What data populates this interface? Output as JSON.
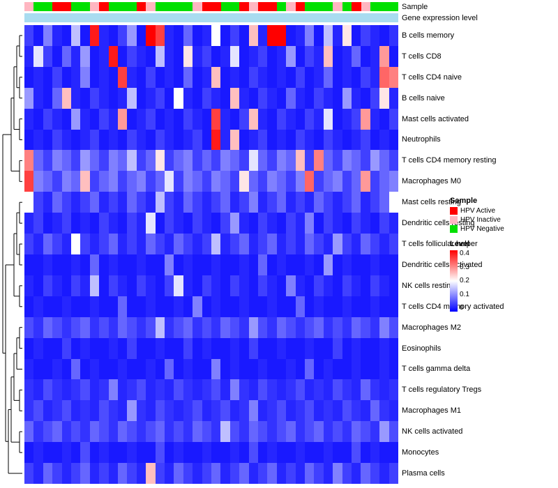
{
  "title_labels": {
    "sample": "Sample",
    "gene_expression": "Gene expression level"
  },
  "legend": {
    "sample_title": "Sample",
    "sample_items": [
      {
        "label": "HPV Active",
        "color": "#FF0000"
      },
      {
        "label": "HPV Inactive",
        "color": "#FFB6C1"
      },
      {
        "label": "HPV Negative",
        "color": "#00E000"
      }
    ],
    "level_title": "Level",
    "level_ticks": [
      "0.4",
      "0.3",
      "0.2",
      "0.1",
      "0"
    ]
  },
  "annotation": {
    "gene_expression_color": "#A9DCF0"
  },
  "chart_data": {
    "type": "heatmap",
    "title": "",
    "rows": [
      "B cells memory",
      "T cells CD8",
      "T cells CD4 naive",
      "B cells naive",
      "Mast cells activated",
      "Neutrophils",
      "T cells CD4 memory resting",
      "Macrophages M0",
      "Mast cells resting",
      "Dendritic cells resting",
      "T cells follicular helper",
      "Dendritic cells activated",
      "NK cells resting",
      "T cells CD4 memory activated",
      "Macrophages M2",
      "Eosinophils",
      "T cells gamma delta",
      "T cells regulatory  Tregs",
      "Macrophages M1",
      "NK cells activated",
      "Monocytes",
      "Plasma cells"
    ],
    "columns": 40,
    "value_range": [
      0,
      0.4
    ],
    "colormap": [
      "#0000FF",
      "#FFFFFF",
      "#FF0000"
    ],
    "column_annotation": [
      "HPV Inactive",
      "HPV Negative",
      "HPV Negative",
      "HPV Active",
      "HPV Active",
      "HPV Negative",
      "HPV Negative",
      "HPV Inactive",
      "HPV Active",
      "HPV Negative",
      "HPV Negative",
      "HPV Negative",
      "HPV Active",
      "HPV Inactive",
      "HPV Negative",
      "HPV Negative",
      "HPV Negative",
      "HPV Negative",
      "HPV Inactive",
      "HPV Active",
      "HPV Active",
      "HPV Negative",
      "HPV Negative",
      "HPV Active",
      "HPV Inactive",
      "HPV Active",
      "HPV Active",
      "HPV Negative",
      "HPV Inactive",
      "HPV Active",
      "HPV Negative",
      "HPV Negative",
      "HPV Negative",
      "HPV Inactive",
      "HPV Negative",
      "HPV Active",
      "HPV Inactive",
      "HPV Negative",
      "HPV Negative",
      "HPV Negative"
    ],
    "row_dendrogram": [
      [
        [
          [
            [
              0,
              1
            ],
            [
              2,
              3
            ]
          ],
          [
            4,
            5
          ]
        ],
        [
          6,
          7
        ]
      ],
      [
        [
          [
            [
              8,
              9
            ],
            [
              10,
              11
            ]
          ],
          [
            12,
            13
          ]
        ],
        [
          [
            [
              [
                [
                  14,
                  15
                ],
                16
              ],
              [
                17,
                18
              ]
            ],
            [
              19,
              20
            ]
          ],
          21
        ]
      ]
    ],
    "values": [
      [
        0.05,
        0.02,
        0.1,
        0.03,
        0.02,
        0.15,
        0.02,
        0.38,
        0.03,
        0.02,
        0.05,
        0.12,
        0.02,
        0.4,
        0.35,
        0.03,
        0.02,
        0.08,
        0.02,
        0.03,
        0.2,
        0.02,
        0.05,
        0.02,
        0.25,
        0.03,
        0.4,
        0.4,
        0.02,
        0.03,
        0.1,
        0.02,
        0.15,
        0.03,
        0.22,
        0.02,
        0.05,
        0.03,
        0.02,
        0.04
      ],
      [
        0.03,
        0.18,
        0.05,
        0.02,
        0.08,
        0.03,
        0.12,
        0.02,
        0.03,
        0.38,
        0.02,
        0.05,
        0.03,
        0.02,
        0.15,
        0.03,
        0.02,
        0.22,
        0.03,
        0.05,
        0.02,
        0.03,
        0.18,
        0.02,
        0.03,
        0.05,
        0.02,
        0.03,
        0.12,
        0.02,
        0.05,
        0.03,
        0.25,
        0.02,
        0.03,
        0.08,
        0.02,
        0.03,
        0.28,
        0.02
      ],
      [
        0.02,
        0.03,
        0.02,
        0.05,
        0.02,
        0.03,
        0.1,
        0.02,
        0.03,
        0.02,
        0.35,
        0.03,
        0.02,
        0.05,
        0.02,
        0.03,
        0.02,
        0.08,
        0.02,
        0.03,
        0.25,
        0.02,
        0.03,
        0.02,
        0.05,
        0.03,
        0.02,
        0.03,
        0.02,
        0.05,
        0.02,
        0.03,
        0.08,
        0.02,
        0.03,
        0.02,
        0.05,
        0.03,
        0.32,
        0.3
      ],
      [
        0.12,
        0.03,
        0.02,
        0.08,
        0.25,
        0.03,
        0.02,
        0.05,
        0.03,
        0.02,
        0.03,
        0.15,
        0.02,
        0.03,
        0.05,
        0.02,
        0.2,
        0.03,
        0.02,
        0.05,
        0.03,
        0.02,
        0.25,
        0.03,
        0.02,
        0.05,
        0.03,
        0.02,
        0.08,
        0.03,
        0.02,
        0.05,
        0.03,
        0.02,
        0.12,
        0.03,
        0.02,
        0.05,
        0.22,
        0.03
      ],
      [
        0.03,
        0.02,
        0.05,
        0.03,
        0.02,
        0.12,
        0.03,
        0.02,
        0.05,
        0.03,
        0.28,
        0.02,
        0.03,
        0.05,
        0.02,
        0.03,
        0.02,
        0.05,
        0.03,
        0.02,
        0.35,
        0.03,
        0.02,
        0.05,
        0.25,
        0.03,
        0.02,
        0.05,
        0.03,
        0.02,
        0.05,
        0.03,
        0.18,
        0.02,
        0.03,
        0.05,
        0.28,
        0.03,
        0.02,
        0.05
      ],
      [
        0.02,
        0.03,
        0.02,
        0.05,
        0.03,
        0.02,
        0.03,
        0.05,
        0.02,
        0.03,
        0.02,
        0.05,
        0.03,
        0.02,
        0.05,
        0.03,
        0.02,
        0.03,
        0.05,
        0.02,
        0.38,
        0.03,
        0.25,
        0.02,
        0.03,
        0.05,
        0.02,
        0.03,
        0.02,
        0.05,
        0.03,
        0.02,
        0.05,
        0.03,
        0.02,
        0.03,
        0.05,
        0.02,
        0.03,
        0.02
      ],
      [
        0.3,
        0.08,
        0.05,
        0.1,
        0.08,
        0.05,
        0.12,
        0.08,
        0.05,
        0.1,
        0.08,
        0.15,
        0.05,
        0.08,
        0.22,
        0.05,
        0.08,
        0.1,
        0.05,
        0.08,
        0.05,
        0.1,
        0.08,
        0.05,
        0.18,
        0.08,
        0.05,
        0.1,
        0.08,
        0.25,
        0.05,
        0.3,
        0.08,
        0.05,
        0.1,
        0.08,
        0.05,
        0.12,
        0.08,
        0.05
      ],
      [
        0.35,
        0.1,
        0.08,
        0.05,
        0.1,
        0.08,
        0.25,
        0.05,
        0.08,
        0.1,
        0.05,
        0.08,
        0.1,
        0.05,
        0.08,
        0.18,
        0.05,
        0.1,
        0.08,
        0.05,
        0.1,
        0.08,
        0.05,
        0.22,
        0.08,
        0.05,
        0.1,
        0.08,
        0.05,
        0.1,
        0.32,
        0.05,
        0.08,
        0.1,
        0.05,
        0.08,
        0.28,
        0.05,
        0.08,
        0.1
      ],
      [
        0.2,
        0.05,
        0.03,
        0.08,
        0.05,
        0.03,
        0.05,
        0.08,
        0.03,
        0.05,
        0.03,
        0.08,
        0.05,
        0.03,
        0.15,
        0.05,
        0.03,
        0.08,
        0.05,
        0.03,
        0.05,
        0.08,
        0.03,
        0.05,
        0.1,
        0.03,
        0.05,
        0.08,
        0.03,
        0.05,
        0.03,
        0.08,
        0.05,
        0.03,
        0.05,
        0.08,
        0.03,
        0.05,
        0.08,
        0.2
      ],
      [
        0.03,
        0.05,
        0.02,
        0.03,
        0.05,
        0.02,
        0.03,
        0.02,
        0.05,
        0.03,
        0.02,
        0.05,
        0.03,
        0.18,
        0.02,
        0.05,
        0.03,
        0.02,
        0.05,
        0.03,
        0.02,
        0.05,
        0.12,
        0.03,
        0.02,
        0.05,
        0.03,
        0.02,
        0.05,
        0.03,
        0.1,
        0.02,
        0.05,
        0.03,
        0.02,
        0.05,
        0.03,
        0.02,
        0.05,
        0.03
      ],
      [
        0.05,
        0.03,
        0.08,
        0.05,
        0.03,
        0.2,
        0.05,
        0.03,
        0.05,
        0.08,
        0.03,
        0.05,
        0.03,
        0.08,
        0.05,
        0.03,
        0.08,
        0.05,
        0.03,
        0.05,
        0.15,
        0.03,
        0.05,
        0.08,
        0.03,
        0.05,
        0.08,
        0.03,
        0.05,
        0.03,
        0.08,
        0.05,
        0.03,
        0.12,
        0.05,
        0.03,
        0.08,
        0.05,
        0.03,
        0.05
      ],
      [
        0.02,
        0.02,
        0.03,
        0.02,
        0.02,
        0.03,
        0.02,
        0.08,
        0.02,
        0.03,
        0.02,
        0.02,
        0.03,
        0.02,
        0.02,
        0.1,
        0.02,
        0.03,
        0.02,
        0.02,
        0.03,
        0.02,
        0.02,
        0.03,
        0.02,
        0.08,
        0.02,
        0.03,
        0.02,
        0.02,
        0.03,
        0.02,
        0.12,
        0.02,
        0.03,
        0.02,
        0.02,
        0.03,
        0.02,
        0.02
      ],
      [
        0.03,
        0.02,
        0.05,
        0.03,
        0.02,
        0.05,
        0.03,
        0.15,
        0.02,
        0.05,
        0.03,
        0.02,
        0.05,
        0.03,
        0.02,
        0.05,
        0.18,
        0.03,
        0.02,
        0.05,
        0.03,
        0.02,
        0.05,
        0.03,
        0.02,
        0.05,
        0.03,
        0.02,
        0.1,
        0.03,
        0.02,
        0.05,
        0.03,
        0.02,
        0.05,
        0.03,
        0.02,
        0.05,
        0.03,
        0.02
      ],
      [
        0.02,
        0.03,
        0.02,
        0.02,
        0.03,
        0.02,
        0.02,
        0.03,
        0.02,
        0.02,
        0.08,
        0.02,
        0.02,
        0.03,
        0.02,
        0.02,
        0.03,
        0.02,
        0.1,
        0.02,
        0.03,
        0.02,
        0.02,
        0.03,
        0.02,
        0.02,
        0.03,
        0.02,
        0.02,
        0.08,
        0.02,
        0.03,
        0.02,
        0.02,
        0.03,
        0.02,
        0.02,
        0.03,
        0.02,
        0.02
      ],
      [
        0.06,
        0.04,
        0.08,
        0.06,
        0.04,
        0.06,
        0.08,
        0.04,
        0.06,
        0.04,
        0.08,
        0.06,
        0.04,
        0.06,
        0.15,
        0.04,
        0.06,
        0.08,
        0.04,
        0.06,
        0.04,
        0.08,
        0.06,
        0.04,
        0.12,
        0.06,
        0.04,
        0.08,
        0.06,
        0.04,
        0.06,
        0.08,
        0.04,
        0.06,
        0.04,
        0.08,
        0.06,
        0.04,
        0.1,
        0.06
      ],
      [
        0.02,
        0.03,
        0.02,
        0.02,
        0.05,
        0.02,
        0.03,
        0.02,
        0.02,
        0.03,
        0.02,
        0.05,
        0.02,
        0.02,
        0.03,
        0.02,
        0.02,
        0.05,
        0.02,
        0.03,
        0.02,
        0.02,
        0.03,
        0.02,
        0.05,
        0.02,
        0.02,
        0.03,
        0.02,
        0.02,
        0.03,
        0.02,
        0.02,
        0.05,
        0.02,
        0.03,
        0.02,
        0.02,
        0.03,
        0.02
      ],
      [
        0.03,
        0.02,
        0.02,
        0.03,
        0.02,
        0.08,
        0.02,
        0.03,
        0.02,
        0.02,
        0.03,
        0.02,
        0.02,
        0.03,
        0.02,
        0.08,
        0.02,
        0.03,
        0.02,
        0.02,
        0.1,
        0.02,
        0.03,
        0.02,
        0.02,
        0.03,
        0.02,
        0.02,
        0.03,
        0.02,
        0.08,
        0.02,
        0.03,
        0.02,
        0.02,
        0.03,
        0.02,
        0.02,
        0.03,
        0.02
      ],
      [
        0.04,
        0.03,
        0.06,
        0.04,
        0.03,
        0.04,
        0.06,
        0.03,
        0.04,
        0.1,
        0.03,
        0.04,
        0.06,
        0.03,
        0.04,
        0.03,
        0.06,
        0.04,
        0.03,
        0.04,
        0.06,
        0.03,
        0.1,
        0.04,
        0.03,
        0.06,
        0.04,
        0.03,
        0.04,
        0.06,
        0.03,
        0.04,
        0.03,
        0.06,
        0.04,
        0.03,
        0.08,
        0.04,
        0.03,
        0.04
      ],
      [
        0.04,
        0.06,
        0.03,
        0.04,
        0.06,
        0.03,
        0.04,
        0.03,
        0.06,
        0.04,
        0.03,
        0.12,
        0.04,
        0.03,
        0.06,
        0.04,
        0.03,
        0.04,
        0.06,
        0.03,
        0.04,
        0.06,
        0.03,
        0.04,
        0.1,
        0.03,
        0.04,
        0.06,
        0.03,
        0.04,
        0.06,
        0.03,
        0.04,
        0.03,
        0.06,
        0.04,
        0.03,
        0.08,
        0.04,
        0.03
      ],
      [
        0.08,
        0.04,
        0.06,
        0.08,
        0.04,
        0.06,
        0.04,
        0.08,
        0.06,
        0.04,
        0.08,
        0.06,
        0.04,
        0.06,
        0.08,
        0.04,
        0.06,
        0.04,
        0.08,
        0.06,
        0.04,
        0.15,
        0.06,
        0.04,
        0.08,
        0.06,
        0.04,
        0.06,
        0.08,
        0.04,
        0.06,
        0.08,
        0.04,
        0.06,
        0.04,
        0.08,
        0.06,
        0.04,
        0.12,
        0.06
      ],
      [
        0.02,
        0.03,
        0.02,
        0.02,
        0.03,
        0.02,
        0.06,
        0.02,
        0.03,
        0.02,
        0.02,
        0.03,
        0.02,
        0.02,
        0.06,
        0.02,
        0.03,
        0.02,
        0.02,
        0.03,
        0.02,
        0.02,
        0.03,
        0.02,
        0.06,
        0.02,
        0.03,
        0.02,
        0.02,
        0.03,
        0.02,
        0.02,
        0.03,
        0.02,
        0.02,
        0.06,
        0.02,
        0.03,
        0.02,
        0.02
      ],
      [
        0.05,
        0.03,
        0.08,
        0.05,
        0.03,
        0.05,
        0.08,
        0.03,
        0.05,
        0.03,
        0.08,
        0.05,
        0.03,
        0.25,
        0.05,
        0.03,
        0.08,
        0.05,
        0.03,
        0.05,
        0.08,
        0.03,
        0.05,
        0.08,
        0.03,
        0.05,
        0.08,
        0.03,
        0.05,
        0.03,
        0.08,
        0.05,
        0.03,
        0.1,
        0.05,
        0.03,
        0.08,
        0.05,
        0.03,
        0.05
      ]
    ]
  }
}
